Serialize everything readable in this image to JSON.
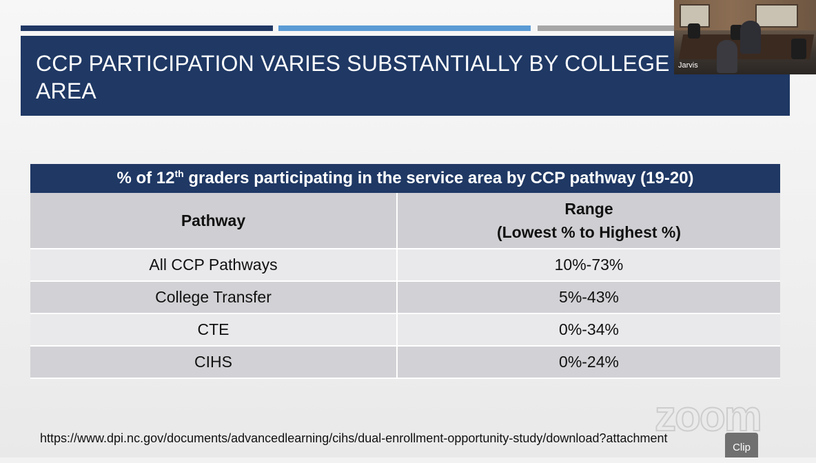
{
  "slide": {
    "title": "CCP PARTICIPATION VARIES SUBSTANTIALLY BY COLLEGE SERVICE AREA",
    "accent_colors": [
      "#1f3864",
      "#5b9bd5",
      "#a6a6a6"
    ]
  },
  "table": {
    "caption_pre": "% of 12",
    "caption_sup": "th",
    "caption_post": " graders participating in the service area by CCP pathway (19-20)",
    "headers": {
      "pathway": "Pathway",
      "range_line1": "Range",
      "range_line2": "(Lowest % to Highest %)"
    },
    "rows": [
      {
        "pathway": "All CCP Pathways",
        "range": "10%-73%"
      },
      {
        "pathway": "College Transfer",
        "range": "5%-43%"
      },
      {
        "pathway": "CTE",
        "range": "0%-34%"
      },
      {
        "pathway": "CIHS",
        "range": "0%-24%"
      }
    ]
  },
  "source_url": "https://www.dpi.nc.gov/documents/advancedlearning/cihs/dual-enrollment-opportunity-study/download?attachment",
  "webcam": {
    "participant_name": "Jarvis"
  },
  "watermark": "zoom",
  "clip_button_label": "Clip",
  "colors": {
    "title_band": "#1f3864",
    "header_row": "#cfcfd3",
    "row_light": "#e9e9ec",
    "row_dark": "#d2d2d6"
  }
}
